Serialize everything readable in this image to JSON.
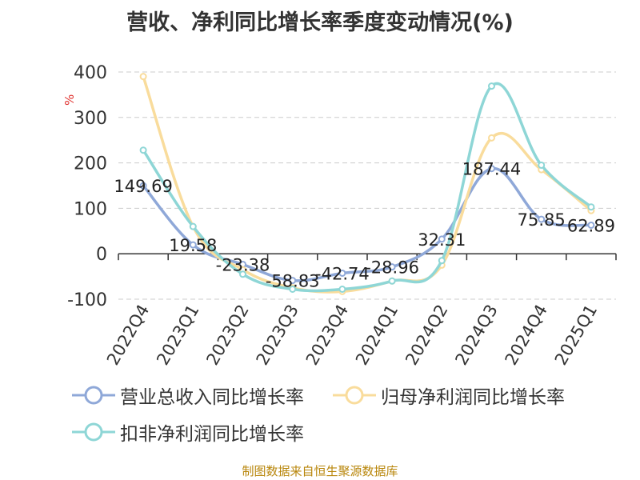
{
  "chart_data": {
    "type": "line",
    "title": "营收、净利同比增长率季度变动情况(%)",
    "ylabel": "%",
    "ylim": [
      -100,
      400
    ],
    "yticks": [
      -100,
      0,
      100,
      200,
      300,
      400
    ],
    "grid": true,
    "legend_position": "bottom",
    "categories": [
      "2022Q4",
      "2023Q1",
      "2023Q2",
      "2023Q3",
      "2023Q4",
      "2024Q1",
      "2024Q2",
      "2024Q3",
      "2024Q4",
      "2025Q1"
    ],
    "series": [
      {
        "name": "营业总收入同比增长率",
        "color": "#8fa8d8",
        "values": [
          149.69,
          19.58,
          -23.38,
          -58.83,
          -42.74,
          -28.96,
          32.31,
          187.44,
          75.85,
          62.89
        ],
        "labels": [
          "149.69",
          "19.58",
          "-23.38",
          "-58.83",
          "-42.74",
          "-28.96",
          "32.31",
          "187.44",
          "75.85",
          "62.89"
        ]
      },
      {
        "name": "归母净利润同比增长率",
        "color": "#f9dc9c",
        "values": [
          390,
          60,
          -35,
          -75,
          -83,
          -60,
          -25,
          255,
          185,
          95
        ]
      },
      {
        "name": "扣非净利润同比增长率",
        "color": "#8ed6d6",
        "values": [
          228,
          60,
          -45,
          -78,
          -78,
          -60,
          -15,
          369,
          195,
          103
        ]
      }
    ]
  },
  "footer": {
    "source": "制图数据来自恒生聚源数据库"
  }
}
